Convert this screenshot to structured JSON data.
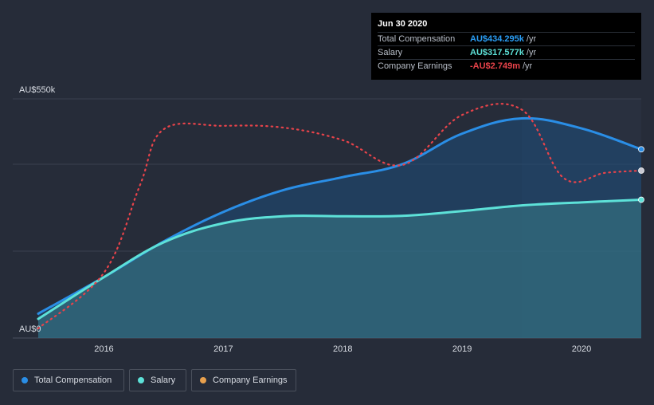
{
  "chart_data": {
    "type": "area",
    "ylim": [
      0,
      550
    ],
    "y_unit": "AU$k",
    "y_tick_labels": [
      "AU$0",
      "AU$550k"
    ],
    "x_tick_labels": [
      "2016",
      "2017",
      "2018",
      "2019",
      "2020"
    ],
    "x_tick_years": [
      2016,
      2017,
      2018,
      2019,
      2020
    ],
    "x_range": [
      2015.45,
      2020.5
    ],
    "forecast_start": 2019.5,
    "series": [
      {
        "name": "Total Compensation",
        "color": "#2a8ee6",
        "style": "solid",
        "x": [
          2015.45,
          2016.0,
          2016.5,
          2017.0,
          2017.5,
          2018.0,
          2018.5,
          2019.0,
          2019.5,
          2020.0,
          2020.5
        ],
        "values": [
          56,
          140,
          222,
          290,
          340,
          370,
          400,
          470,
          505,
          482,
          434
        ]
      },
      {
        "name": "Salary",
        "color": "#5de1d8",
        "style": "solid",
        "x": [
          2015.45,
          2016.0,
          2016.5,
          2017.0,
          2017.5,
          2018.0,
          2018.5,
          2019.0,
          2019.5,
          2020.0,
          2020.5
        ],
        "values": [
          44,
          140,
          220,
          264,
          280,
          280,
          281,
          292,
          305,
          312,
          318
        ]
      },
      {
        "name": "Company Earnings",
        "color": "#e8434a",
        "style": "dotted",
        "x": [
          2015.45,
          2016.0,
          2016.3,
          2016.5,
          2017.0,
          2017.5,
          2018.0,
          2018.5,
          2019.0,
          2019.5,
          2019.85,
          2020.2,
          2020.5
        ],
        "values": [
          22,
          150,
          350,
          480,
          488,
          484,
          455,
          398,
          513,
          525,
          368,
          380,
          385
        ]
      }
    ]
  },
  "tooltip": {
    "date": "Jun 30 2020",
    "rows": [
      {
        "label": "Total Compensation",
        "value": "AU$434.295k",
        "unit": "/yr",
        "color": "#2a9df4"
      },
      {
        "label": "Salary",
        "value": "AU$317.577k",
        "unit": "/yr",
        "color": "#5de1d8"
      },
      {
        "label": "Company Earnings",
        "value": "-AU$2.749m",
        "unit": "/yr",
        "color": "#e8434a"
      }
    ]
  },
  "legend": [
    {
      "label": "Total Compensation",
      "color": "#2a8ee6"
    },
    {
      "label": "Salary",
      "color": "#5de1d8"
    },
    {
      "label": "Company Earnings",
      "color": "#e8a04d"
    }
  ]
}
